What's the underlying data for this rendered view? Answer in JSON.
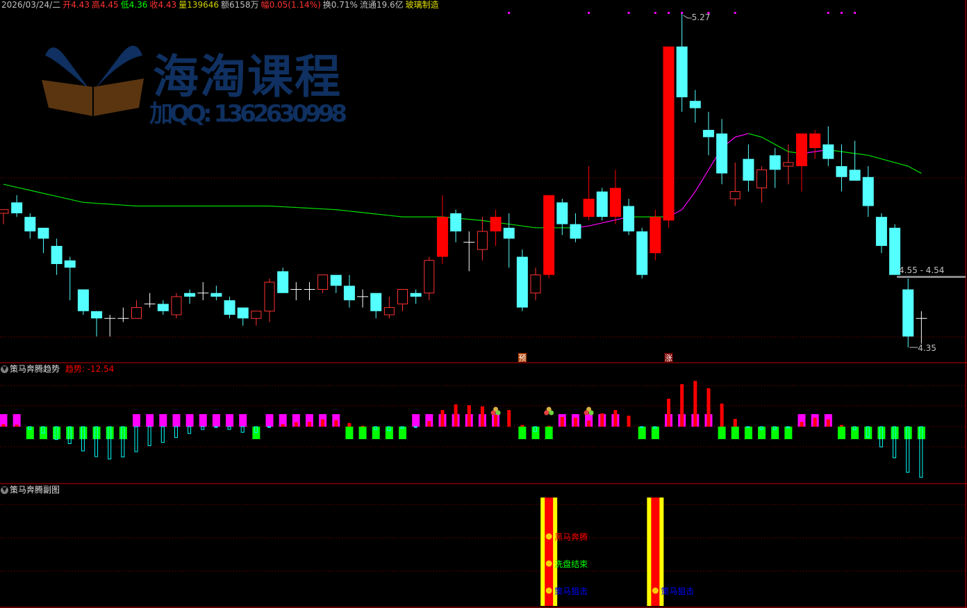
{
  "quote_bar": {
    "date": "2026/03/24/二",
    "open_label": "开",
    "open": "4.43",
    "high_label": "高",
    "high": "4.45",
    "low_label": "低",
    "low": "4.36",
    "close_label": "收",
    "close": "4.43",
    "volume_label": "量",
    "volume": "139646",
    "amount_label": "额",
    "amount": "6158万",
    "change_label": "幅",
    "change": "0.05(1.14%)",
    "turnover_label": "换",
    "turnover": "0.71%",
    "float_label": "流通",
    "float": "19.6亿",
    "sector": "玻璃制造"
  },
  "watermark": {
    "brand": "海淘课程",
    "contact": "加QQ: 1362630998"
  },
  "main_chart": {
    "high_mark": "5.27",
    "low_mark": "4.35",
    "gap_label": "4.55 - 4.54",
    "markers": [
      {
        "index": 39,
        "text": "预"
      },
      {
        "index": 50,
        "text": "涨"
      }
    ],
    "top_dots": [
      38,
      44,
      47,
      49,
      50,
      51,
      53,
      55,
      62,
      63,
      64
    ],
    "candles": [
      [
        4.72,
        4.73,
        4.69,
        4.73,
        "u"
      ],
      [
        4.75,
        4.77,
        4.71,
        4.72,
        "d"
      ],
      [
        4.71,
        4.72,
        4.65,
        4.67,
        "d"
      ],
      [
        4.68,
        4.68,
        4.61,
        4.65,
        "d"
      ],
      [
        4.63,
        4.65,
        4.55,
        4.58,
        "d"
      ],
      [
        4.59,
        4.6,
        4.48,
        4.57,
        "d"
      ],
      [
        4.51,
        4.51,
        4.44,
        4.45,
        "d"
      ],
      [
        4.45,
        4.45,
        4.38,
        4.43,
        "d"
      ],
      [
        4.43,
        4.44,
        4.38,
        4.43,
        "x"
      ],
      [
        4.43,
        4.46,
        4.42,
        4.43,
        "x"
      ],
      [
        4.43,
        4.48,
        4.43,
        4.46,
        "u"
      ],
      [
        4.47,
        4.5,
        4.46,
        4.47,
        "x"
      ],
      [
        4.47,
        4.48,
        4.44,
        4.45,
        "d"
      ],
      [
        4.44,
        4.5,
        4.43,
        4.49,
        "u"
      ],
      [
        4.5,
        4.51,
        4.47,
        4.49,
        "d"
      ],
      [
        4.5,
        4.53,
        4.48,
        4.5,
        "x"
      ],
      [
        4.5,
        4.52,
        4.48,
        4.49,
        "d"
      ],
      [
        4.48,
        4.49,
        4.43,
        4.44,
        "d"
      ],
      [
        4.46,
        4.46,
        4.41,
        4.43,
        "d"
      ],
      [
        4.43,
        4.45,
        4.41,
        4.45,
        "u"
      ],
      [
        4.45,
        4.54,
        4.42,
        4.53,
        "u"
      ],
      [
        4.56,
        4.57,
        4.5,
        4.5,
        "d"
      ],
      [
        4.51,
        4.53,
        4.48,
        4.51,
        "x"
      ],
      [
        4.51,
        4.53,
        4.48,
        4.51,
        "x"
      ],
      [
        4.51,
        4.55,
        4.5,
        4.55,
        "u"
      ],
      [
        4.55,
        4.55,
        4.5,
        4.52,
        "d"
      ],
      [
        4.52,
        4.55,
        4.46,
        4.48,
        "d"
      ],
      [
        4.49,
        4.51,
        4.46,
        4.49,
        "x"
      ],
      [
        4.5,
        4.5,
        4.43,
        4.45,
        "d"
      ],
      [
        4.44,
        4.49,
        4.43,
        4.46,
        "u"
      ],
      [
        4.47,
        4.51,
        4.45,
        4.51,
        "u"
      ],
      [
        4.5,
        4.51,
        4.47,
        4.49,
        "d"
      ],
      [
        4.5,
        4.6,
        4.48,
        4.59,
        "u"
      ],
      [
        4.6,
        4.77,
        4.58,
        4.71,
        "U"
      ],
      [
        4.72,
        4.73,
        4.64,
        4.67,
        "d"
      ],
      [
        4.64,
        4.67,
        4.56,
        4.64,
        "x"
      ],
      [
        4.62,
        4.71,
        4.59,
        4.67,
        "u"
      ],
      [
        4.67,
        4.73,
        4.63,
        4.71,
        "U"
      ],
      [
        4.68,
        4.72,
        4.57,
        4.65,
        "d"
      ],
      [
        4.6,
        4.62,
        4.45,
        4.46,
        "d"
      ],
      [
        4.5,
        4.57,
        4.48,
        4.55,
        "u"
      ],
      [
        4.55,
        4.77,
        4.54,
        4.77,
        "U"
      ],
      [
        4.75,
        4.76,
        4.66,
        4.69,
        "d"
      ],
      [
        4.69,
        4.72,
        4.64,
        4.65,
        "d"
      ],
      [
        4.71,
        4.85,
        4.7,
        4.76,
        "U"
      ],
      [
        4.78,
        4.79,
        4.7,
        4.71,
        "d"
      ],
      [
        4.71,
        4.84,
        4.69,
        4.79,
        "U"
      ],
      [
        4.74,
        4.76,
        4.66,
        4.67,
        "d"
      ],
      [
        4.67,
        4.68,
        4.54,
        4.55,
        "d"
      ],
      [
        4.61,
        4.73,
        4.59,
        4.71,
        "U"
      ],
      [
        4.7,
        5.18,
        4.68,
        5.18,
        "U"
      ],
      [
        5.18,
        5.27,
        5.0,
        5.04,
        "d"
      ],
      [
        5.03,
        5.06,
        4.97,
        5.01,
        "d"
      ],
      [
        4.95,
        5.0,
        4.88,
        4.93,
        "d"
      ],
      [
        4.94,
        4.98,
        4.8,
        4.83,
        "d"
      ],
      [
        4.76,
        4.86,
        4.74,
        4.78,
        "u"
      ],
      [
        4.87,
        4.91,
        4.78,
        4.81,
        "d"
      ],
      [
        4.79,
        4.85,
        4.75,
        4.84,
        "u"
      ],
      [
        4.88,
        4.9,
        4.79,
        4.84,
        "d"
      ],
      [
        4.85,
        4.91,
        4.8,
        4.86,
        "u"
      ],
      [
        4.85,
        4.94,
        4.78,
        4.94,
        "U"
      ],
      [
        4.9,
        4.95,
        4.87,
        4.94,
        "U"
      ],
      [
        4.91,
        4.96,
        4.85,
        4.87,
        "d"
      ],
      [
        4.85,
        4.91,
        4.78,
        4.82,
        "d"
      ],
      [
        4.84,
        4.92,
        4.81,
        4.81,
        "d"
      ],
      [
        4.82,
        4.85,
        4.71,
        4.74,
        "d"
      ],
      [
        4.71,
        4.72,
        4.61,
        4.63,
        "d"
      ],
      [
        4.68,
        4.69,
        4.55,
        4.55,
        "d"
      ],
      [
        4.51,
        4.54,
        4.35,
        4.38,
        "d"
      ],
      [
        4.43,
        4.45,
        4.36,
        4.43,
        "x"
      ]
    ],
    "ma_points": [
      [
        0,
        4.8
      ],
      [
        6,
        4.75
      ],
      [
        10,
        4.74
      ],
      [
        20,
        4.74
      ],
      [
        25,
        4.73
      ],
      [
        30,
        4.71
      ],
      [
        33,
        4.71
      ],
      [
        36,
        4.7
      ],
      [
        40,
        4.68
      ],
      [
        43,
        4.68
      ],
      [
        44,
        4.685
      ],
      [
        47,
        4.71
      ],
      [
        50,
        4.71
      ],
      [
        51,
        4.73
      ],
      [
        52,
        4.78
      ],
      [
        53,
        4.84
      ],
      [
        54,
        4.9
      ],
      [
        55,
        4.93
      ],
      [
        56,
        4.94
      ],
      [
        57,
        4.93
      ],
      [
        58,
        4.91
      ],
      [
        59,
        4.89
      ],
      [
        60,
        4.885
      ],
      [
        61,
        4.89
      ],
      [
        62,
        4.895
      ],
      [
        63,
        4.89
      ],
      [
        64,
        4.885
      ],
      [
        65,
        4.88
      ],
      [
        66,
        4.87
      ],
      [
        67,
        4.86
      ],
      [
        68,
        4.85
      ],
      [
        69,
        4.83
      ]
    ],
    "colors": {
      "up": "#ff3232",
      "up_filled": "#ff0000",
      "down": "#54ffff",
      "doji": "#ffffff",
      "ma_rise": "#ff00ff",
      "ma_fall": "#00e000"
    }
  },
  "trend_panel": {
    "title": "策马奔腾趋势",
    "value_label": "趋势: -12.54",
    "states": "MMGGGGGGGGMMMMMMMMMGMMMMMMGGGGGMMMMMMM-GGGMMMMM-GGMMMMGGGGGGMMMGGGGGGG",
    "values": [
      0.6,
      0.5,
      -0.7,
      -1.6,
      -3.2,
      -4.2,
      -6.0,
      -7.4,
      -8.0,
      -7.5,
      -6.2,
      -4.7,
      -3.9,
      -2.7,
      -1.7,
      -0.7,
      -0.2,
      -0.7,
      -1.4,
      -1.5,
      -0.2,
      0.6,
      1.1,
      1.2,
      1.8,
      1.6,
      0.9,
      0.2,
      -0.7,
      -1.0,
      -0.4,
      -0.2,
      1.4,
      4.1,
      5.5,
      5.3,
      5.0,
      2.9,
      4.1,
      0.4,
      -1.2,
      0.2,
      2.4,
      2.2,
      1.5,
      3.3,
      4.1,
      2.7,
      -0.2,
      -0.4,
      6.9,
      10.5,
      11.3,
      9.5,
      5.7,
      1.9,
      -0.2,
      -0.7,
      -0.7,
      -0.3,
      1.2,
      2.2,
      1.8,
      0.4,
      -0.8,
      -2.6,
      -5.0,
      -7.7,
      -11.3,
      -12.54
    ],
    "ball_icons": [
      37,
      41,
      44
    ],
    "colors": {
      "state_pos": "#ff00ff",
      "state_neg": "#00ff00",
      "value_pos": "#ff0000",
      "value_neg": "#00ffff"
    }
  },
  "signal_panel": {
    "title": "策马奔腾副图",
    "signals": [
      {
        "index": 41,
        "labels": [
          {
            "text": "黑马奔腾",
            "color": "#ff0000"
          },
          {
            "text": "洗盘结束",
            "color": "#00ff00"
          },
          {
            "text": "策马狙击",
            "color": "#0000ff"
          }
        ]
      },
      {
        "index": 49,
        "labels": [
          {
            "text": "策马狙击",
            "color": "#0000ff"
          }
        ]
      }
    ]
  }
}
